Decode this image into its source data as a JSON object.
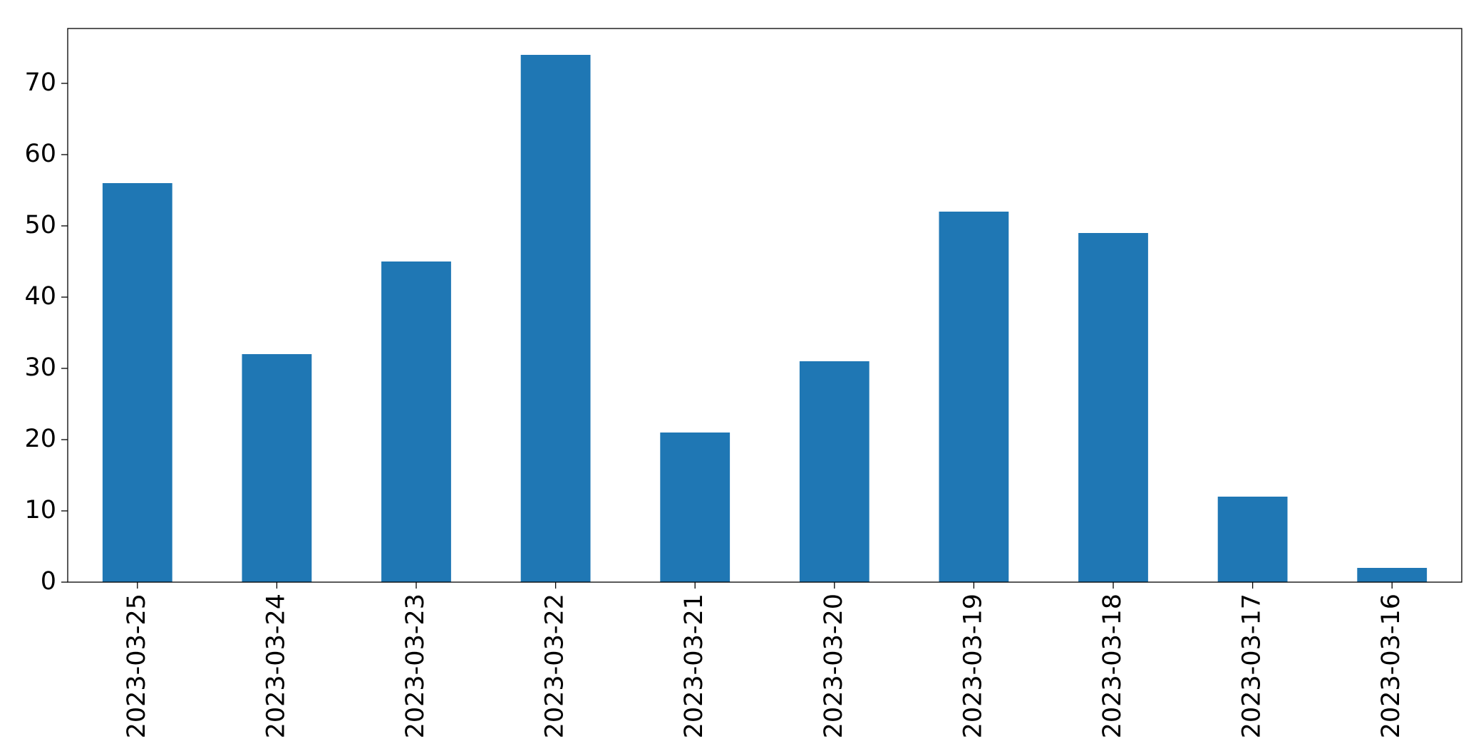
{
  "chart_data": {
    "type": "bar",
    "categories": [
      "2023-03-25",
      "2023-03-24",
      "2023-03-23",
      "2023-03-22",
      "2023-03-21",
      "2023-03-20",
      "2023-03-19",
      "2023-03-18",
      "2023-03-17",
      "2023-03-16"
    ],
    "values": [
      56,
      32,
      45,
      74,
      21,
      31,
      52,
      49,
      12,
      2
    ],
    "color": "#1f77b4",
    "ylim": [
      0,
      77.7
    ],
    "yticks": [
      0,
      10,
      20,
      30,
      40,
      50,
      60,
      70
    ],
    "grid": false
  }
}
